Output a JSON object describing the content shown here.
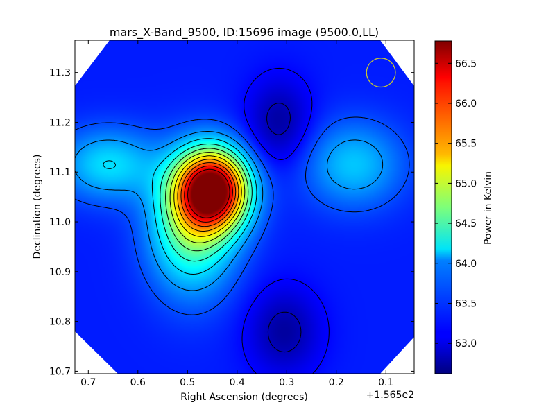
{
  "chart_data": {
    "type": "heatmap",
    "title": "mars_X-Band_9500, ID:15696 image (9500.0,LL)",
    "xlabel": "Right Ascension (degrees)",
    "ylabel": "Declination (degrees)",
    "x_offset_label": "+1.565e2",
    "xlim": [
      0.727,
      0.043
    ],
    "ylim": [
      10.695,
      11.365
    ],
    "x_ticks": [
      0.7,
      0.6,
      0.5,
      0.4,
      0.3,
      0.2,
      0.1
    ],
    "x_tick_labels": [
      "0.7",
      "0.6",
      "0.5",
      "0.4",
      "0.3",
      "0.2",
      "0.1"
    ],
    "y_ticks": [
      10.7,
      10.8,
      10.9,
      11.0,
      11.1,
      11.2,
      11.3
    ],
    "y_tick_labels": [
      "10.7",
      "10.8",
      "10.9",
      "11.0",
      "11.1",
      "11.2",
      "11.3"
    ],
    "colorbar": {
      "label": "Power in Kelvin",
      "range": [
        62.62,
        66.78
      ],
      "ticks": [
        63.0,
        63.5,
        64.0,
        64.5,
        65.0,
        65.5,
        66.0,
        66.5
      ],
      "tick_labels": [
        "63.0",
        "63.5",
        "64.0",
        "64.5",
        "65.0",
        "65.5",
        "66.0",
        "66.5"
      ],
      "colormap": "jet"
    },
    "background_level": 63.25,
    "features": [
      {
        "kind": "peak",
        "x": 0.45,
        "y": 11.065,
        "value": 66.78
      },
      {
        "kind": "peak",
        "x": 0.66,
        "y": 11.115,
        "value": 64.05
      },
      {
        "kind": "peak",
        "x": 0.165,
        "y": 11.115,
        "value": 63.95
      },
      {
        "kind": "peak",
        "x": 0.49,
        "y": 10.99,
        "value": 64.6
      },
      {
        "kind": "trough",
        "x": 0.315,
        "y": 11.2,
        "value": 62.75
      },
      {
        "kind": "trough",
        "x": 0.305,
        "y": 10.78,
        "value": 62.75
      }
    ],
    "beam_circle": {
      "x": 0.11,
      "y": 11.3,
      "radius_deg": 0.053,
      "color": "#c8c832"
    },
    "grid": false
  }
}
